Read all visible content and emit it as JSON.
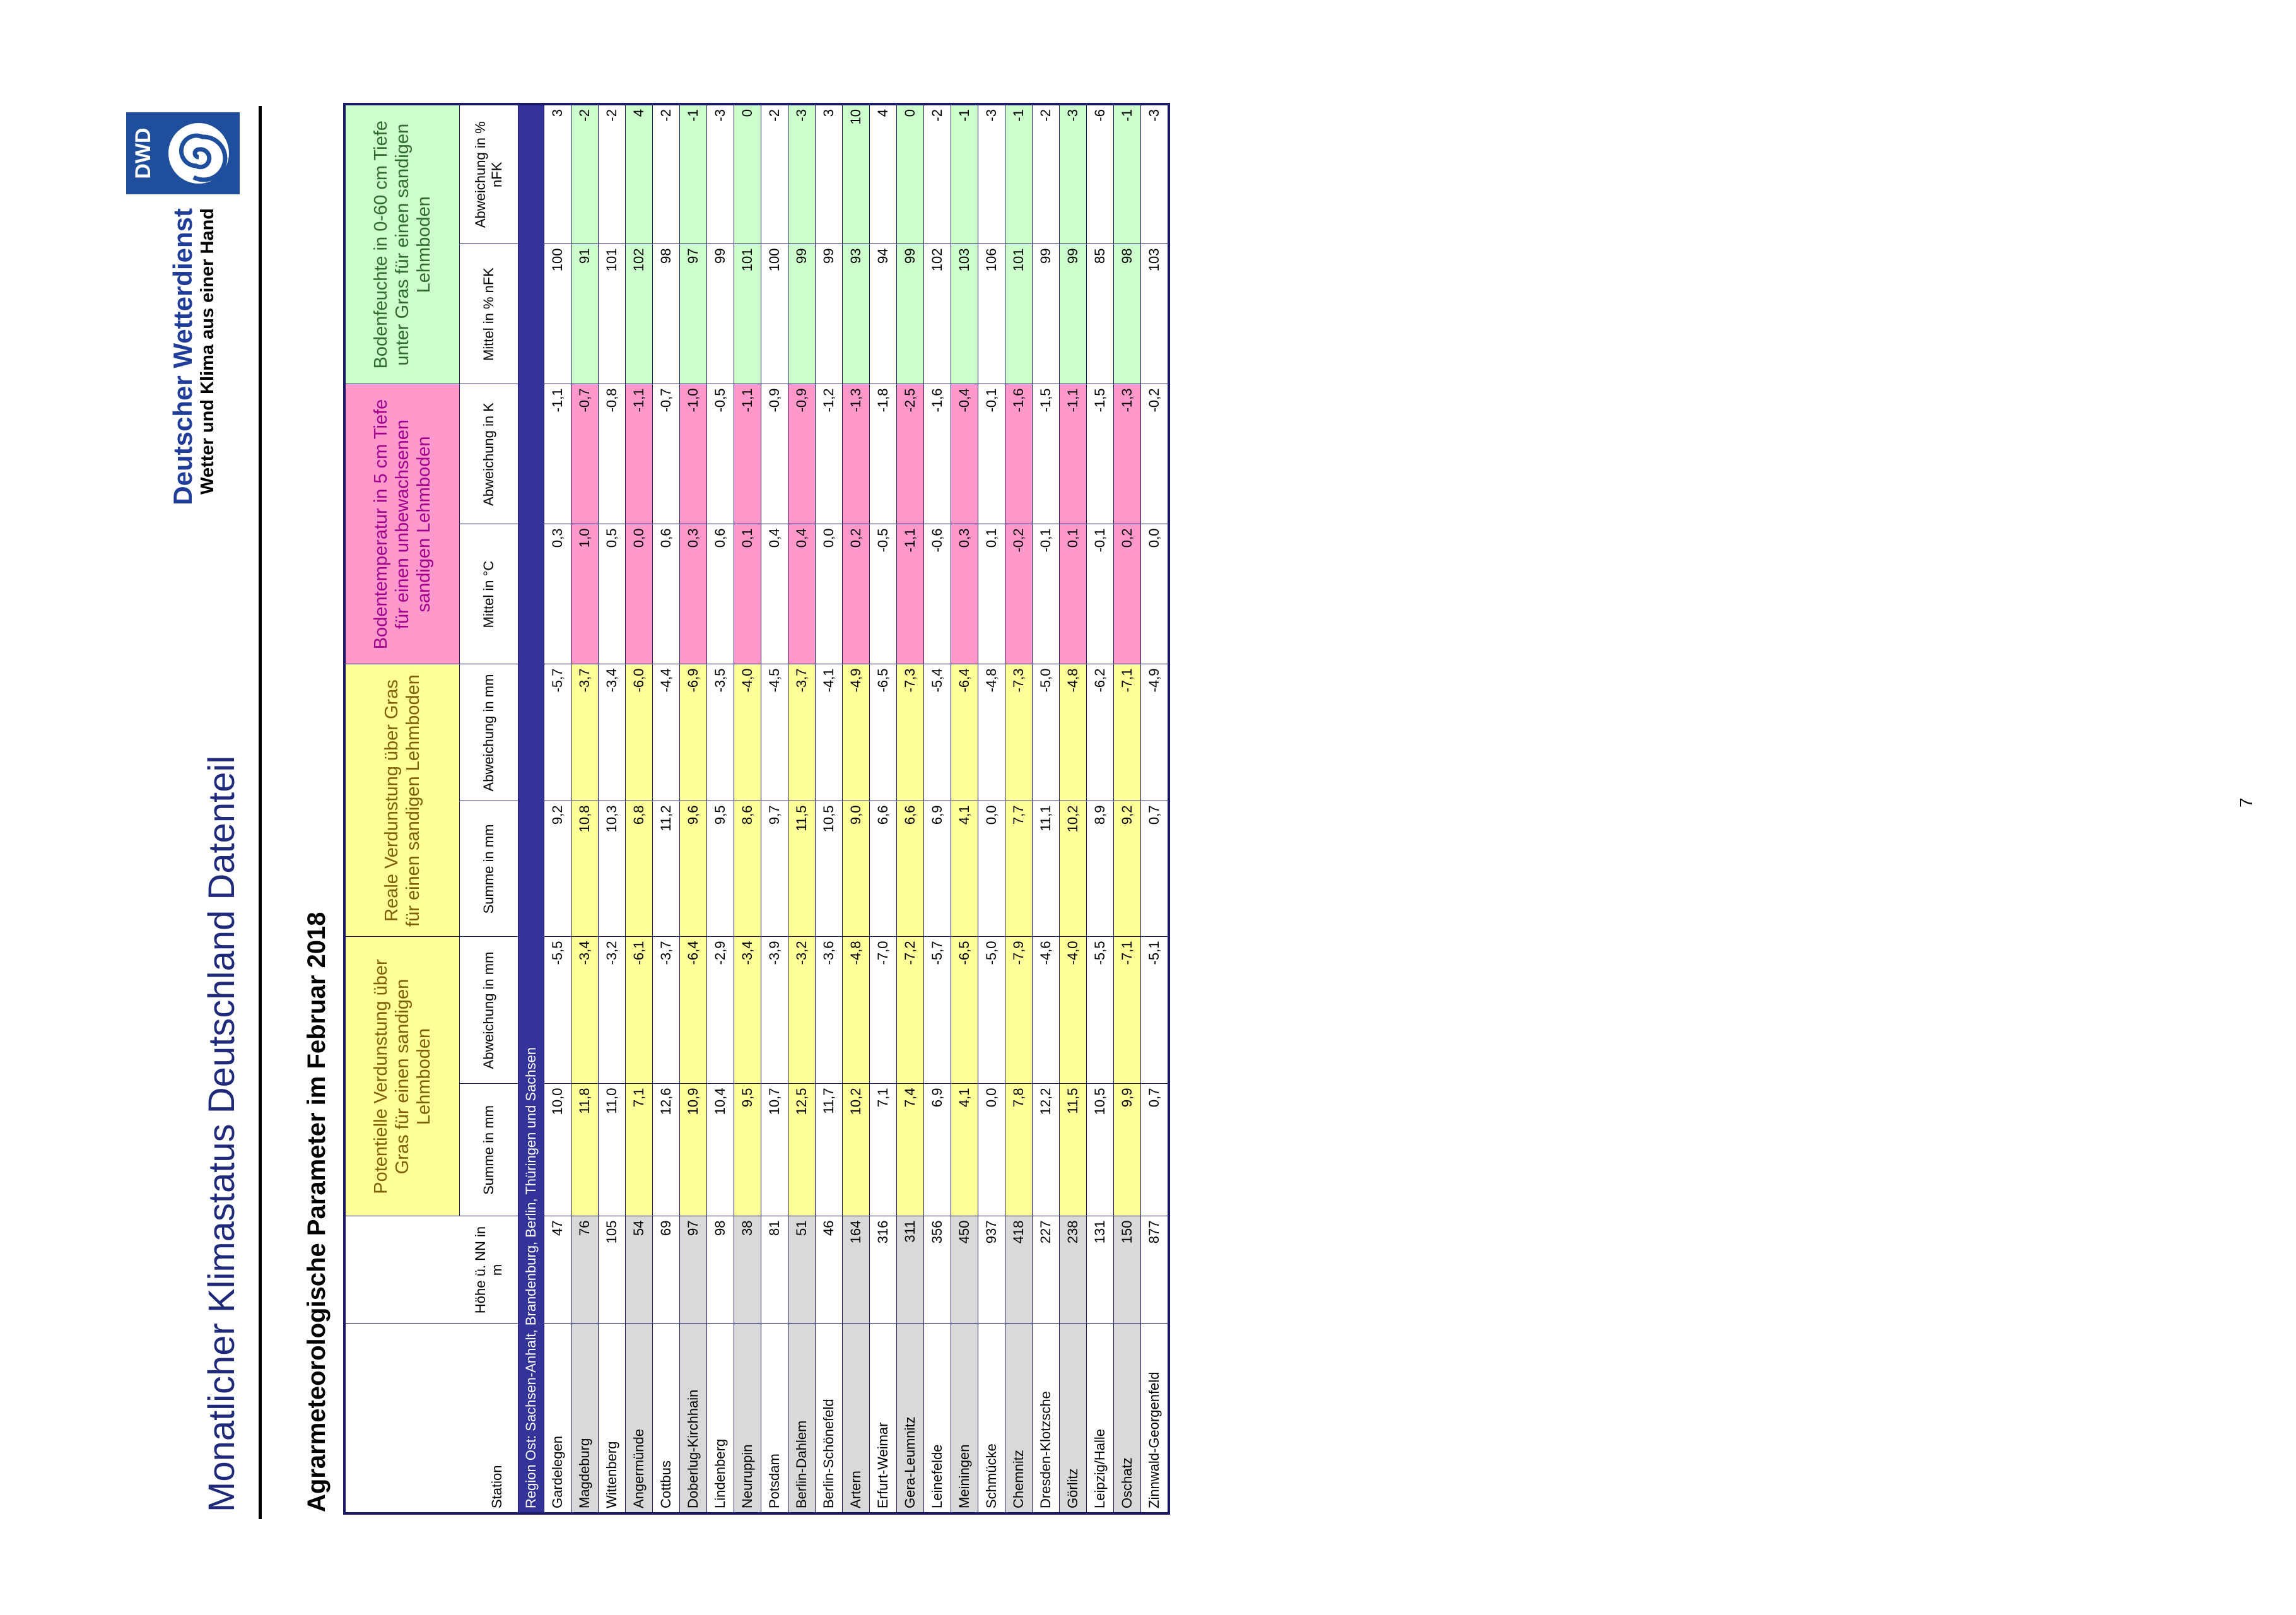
{
  "header": {
    "title": "Monatlicher Klimastatus Deutschland Datenteil",
    "org_name": "Deutscher Wetterdienst",
    "org_slogan": "Wetter und Klima aus einer Hand",
    "logo_text": "DWD"
  },
  "table": {
    "title": "Agrarmeteorologische Parameter im Februar 2018",
    "group_headers": [
      "Potentielle Verdunstung über Gras für einen sandigen Lehmboden",
      "Reale Verdunstung über Gras für einen sandigen Lehmboden",
      "Bodentemperatur in 5 cm Tiefe für einen unbewachsenen sandigen Lehmboden",
      "Bodenfeuchte in 0-60 cm Tiefe unter Gras für einen sandigen Lehmboden"
    ],
    "sub_headers": [
      "Station",
      "Höhe ü. NN in m",
      "Summe in mm",
      "Abweichung in mm",
      "Summe in mm",
      "Abweichung in mm",
      "Mittel in °C",
      "Abweichung in K",
      "Mittel in % nFK",
      "Abweichung in % nFK"
    ],
    "region": "Region Ost: Sachsen-Anhalt, Brandenburg, Berlin, Thüringen und Sachsen",
    "rows": [
      [
        "Gardelegen",
        "47",
        "10,0",
        "-5,5",
        "9,2",
        "-5,7",
        "0,3",
        "-1,1",
        "100",
        "3"
      ],
      [
        "Magdeburg",
        "76",
        "11,8",
        "-3,4",
        "10,8",
        "-3,7",
        "1,0",
        "-0,7",
        "91",
        "-2"
      ],
      [
        "Wittenberg",
        "105",
        "11,0",
        "-3,2",
        "10,3",
        "-3,4",
        "0,5",
        "-0,8",
        "101",
        "-2"
      ],
      [
        "Angermünde",
        "54",
        "7,1",
        "-6,1",
        "6,8",
        "-6,0",
        "0,0",
        "-1,1",
        "102",
        "4"
      ],
      [
        "Cottbus",
        "69",
        "12,6",
        "-3,7",
        "11,2",
        "-4,4",
        "0,6",
        "-0,7",
        "98",
        "-2"
      ],
      [
        "Doberlug-Kirchhain",
        "97",
        "10,9",
        "-6,4",
        "9,6",
        "-6,9",
        "0,3",
        "-1,0",
        "97",
        "-1"
      ],
      [
        "Lindenberg",
        "98",
        "10,4",
        "-2,9",
        "9,5",
        "-3,5",
        "0,6",
        "-0,5",
        "99",
        "-3"
      ],
      [
        "Neuruppin",
        "38",
        "9,5",
        "-3,4",
        "8,6",
        "-4,0",
        "0,1",
        "-1,1",
        "101",
        "0"
      ],
      [
        "Potsdam",
        "81",
        "10,7",
        "-3,9",
        "9,7",
        "-4,5",
        "0,4",
        "-0,9",
        "100",
        "-2"
      ],
      [
        "Berlin-Dahlem",
        "51",
        "12,5",
        "-3,2",
        "11,5",
        "-3,7",
        "0,4",
        "-0,9",
        "99",
        "-3"
      ],
      [
        "Berlin-Schönefeld",
        "46",
        "11,7",
        "-3,6",
        "10,5",
        "-4,1",
        "0,0",
        "-1,2",
        "99",
        "3"
      ],
      [
        "Artern",
        "164",
        "10,2",
        "-4,8",
        "9,0",
        "-4,9",
        "0,2",
        "-1,3",
        "93",
        "10"
      ],
      [
        "Erfurt-Weimar",
        "316",
        "7,1",
        "-7,0",
        "6,6",
        "-6,5",
        "-0,5",
        "-1,8",
        "94",
        "4"
      ],
      [
        "Gera-Leumnitz",
        "311",
        "7,4",
        "-7,2",
        "6,6",
        "-7,3",
        "-1,1",
        "-2,5",
        "99",
        "0"
      ],
      [
        "Leinefelde",
        "356",
        "6,9",
        "-5,7",
        "6,9",
        "-5,4",
        "-0,6",
        "-1,6",
        "102",
        "-2"
      ],
      [
        "Meiningen",
        "450",
        "4,1",
        "-6,5",
        "4,1",
        "-6,4",
        "0,3",
        "-0,4",
        "103",
        "-1"
      ],
      [
        "Schmücke",
        "937",
        "0,0",
        "-5,0",
        "0,0",
        "-4,8",
        "0,1",
        "-0,1",
        "106",
        "-3"
      ],
      [
        "Chemnitz",
        "418",
        "7,8",
        "-7,9",
        "7,7",
        "-7,3",
        "-0,2",
        "-1,6",
        "101",
        "-1"
      ],
      [
        "Dresden-Klotzsche",
        "227",
        "12,2",
        "-4,6",
        "11,1",
        "-5,0",
        "-0,1",
        "-1,5",
        "99",
        "-2"
      ],
      [
        "Görlitz",
        "238",
        "11,5",
        "-4,0",
        "10,2",
        "-4,8",
        "0,1",
        "-1,1",
        "99",
        "-3"
      ],
      [
        "Leipzig/Halle",
        "131",
        "10,5",
        "-5,5",
        "8,9",
        "-6,2",
        "-0,1",
        "-1,5",
        "85",
        "-6"
      ],
      [
        "Oschatz",
        "150",
        "9,9",
        "-7,1",
        "9,2",
        "-7,1",
        "0,2",
        "-1,3",
        "98",
        "-1"
      ],
      [
        "Zinnwald-Georgenfeld",
        "877",
        "0,7",
        "-5,1",
        "0,7",
        "-4,9",
        "0,0",
        "-0,2",
        "103",
        "-3"
      ]
    ]
  },
  "page_number": "7"
}
